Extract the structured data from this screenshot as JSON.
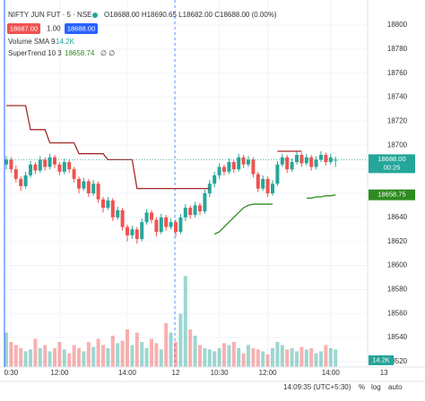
{
  "header": {
    "symbol": "NIFTY JUN FUT · 5 · NSE",
    "ohlc": "O18688.00 H18690.65 L18682.00 C18688.00 (0.00%)",
    "bid": "18687.00",
    "spread": "1.00",
    "ask": "18688.00",
    "volume_label": "Volume SMA 9",
    "volume_sma": "14.2K",
    "supertrend_label": "SuperTrend 10 3",
    "supertrend_value": "18658.74",
    "supertrend_rest": "∅ ∅"
  },
  "chart_data": {
    "type": "candlestick",
    "categories": [
      null,
      "0:30",
      null,
      null,
      null,
      null,
      null,
      null,
      null,
      null,
      null,
      "12:00",
      null,
      null,
      null,
      null,
      null,
      null,
      null,
      null,
      null,
      null,
      null,
      null,
      null,
      "14:00",
      null,
      null,
      null,
      null,
      null,
      null,
      null,
      null,
      null,
      "12",
      null,
      null,
      null,
      null,
      null,
      null,
      null,
      null,
      "10:30",
      null,
      null,
      null,
      null,
      null,
      null,
      null,
      null,
      null,
      "12:00",
      null,
      null,
      null,
      null,
      null,
      null,
      null,
      null,
      null,
      null,
      null,
      null,
      "14:00",
      null,
      null,
      null,
      null,
      null,
      null,
      null,
      null,
      null,
      null,
      "13"
    ],
    "ohlc": [
      [
        18684,
        18691,
        18680,
        18688
      ],
      [
        18688,
        18690,
        18677,
        18680
      ],
      [
        18680,
        18683,
        18669,
        18672
      ],
      [
        18672,
        18674,
        18662,
        18666
      ],
      [
        18666,
        18678,
        18664,
        18675
      ],
      [
        18675,
        18687,
        18673,
        18684
      ],
      [
        18684,
        18686,
        18676,
        18679
      ],
      [
        18679,
        18691,
        18677,
        18688
      ],
      [
        18688,
        18690,
        18679,
        18682
      ],
      [
        18682,
        18693,
        18680,
        18690
      ],
      [
        18690,
        18692,
        18681,
        18684
      ],
      [
        18684,
        18686,
        18675,
        18678
      ],
      [
        18678,
        18689,
        18676,
        18686
      ],
      [
        18686,
        18688,
        18677,
        18680
      ],
      [
        18680,
        18682,
        18669,
        18672
      ],
      [
        18672,
        18674,
        18660,
        18664
      ],
      [
        18664,
        18673,
        18662,
        18670
      ],
      [
        18670,
        18672,
        18657,
        18660
      ],
      [
        18660,
        18671,
        18658,
        18668
      ],
      [
        18668,
        18670,
        18652,
        18655
      ],
      [
        18655,
        18657,
        18644,
        18648
      ],
      [
        18648,
        18657,
        18646,
        18654
      ],
      [
        18654,
        18656,
        18637,
        18640
      ],
      [
        18640,
        18649,
        18638,
        18646
      ],
      [
        18646,
        18648,
        18629,
        18632
      ],
      [
        18632,
        18634,
        18620,
        18625
      ],
      [
        18625,
        18633,
        18622,
        18630
      ],
      [
        18630,
        18632,
        18618,
        18622
      ],
      [
        18622,
        18639,
        18620,
        18636
      ],
      [
        18636,
        18647,
        18634,
        18644
      ],
      [
        18644,
        18646,
        18635,
        18638
      ],
      [
        18638,
        18640,
        18624,
        18628
      ],
      [
        18628,
        18643,
        18626,
        18640
      ],
      [
        18640,
        18642,
        18629,
        18632
      ],
      [
        18632,
        18639,
        18630,
        18636
      ],
      [
        18636,
        18638,
        18624,
        18628
      ],
      [
        18628,
        18643,
        18626,
        18640
      ],
      [
        18640,
        18651,
        18637,
        18648
      ],
      [
        18648,
        18650,
        18639,
        18642
      ],
      [
        18642,
        18653,
        18640,
        18650
      ],
      [
        18650,
        18652,
        18642,
        18645
      ],
      [
        18645,
        18663,
        18643,
        18660
      ],
      [
        18660,
        18671,
        18657,
        18668
      ],
      [
        18668,
        18678,
        18665,
        18675
      ],
      [
        18675,
        18685,
        18672,
        18682
      ],
      [
        18682,
        18684,
        18675,
        18678
      ],
      [
        18678,
        18689,
        18676,
        18686
      ],
      [
        18686,
        18688,
        18677,
        18680
      ],
      [
        18680,
        18693,
        18678,
        18690
      ],
      [
        18690,
        18692,
        18681,
        18684
      ],
      [
        18684,
        18691,
        18682,
        18688
      ],
      [
        18688,
        18690,
        18673,
        18676
      ],
      [
        18676,
        18678,
        18661,
        18664
      ],
      [
        18664,
        18675,
        18662,
        18672
      ],
      [
        18672,
        18674,
        18657,
        18660
      ],
      [
        18660,
        18671,
        18658,
        18668
      ],
      [
        18668,
        18687,
        18666,
        18684
      ],
      [
        18684,
        18693,
        18682,
        18690
      ],
      [
        18690,
        18692,
        18677,
        18680
      ],
      [
        18680,
        18689,
        18678,
        18686
      ],
      [
        18686,
        18695,
        18684,
        18692
      ],
      [
        18692,
        18694,
        18682,
        18685
      ],
      [
        18685,
        18693,
        18683,
        18690
      ],
      [
        18690,
        18692,
        18679,
        18682
      ],
      [
        18682,
        18691,
        18680,
        18688
      ],
      [
        18688,
        18695,
        18686,
        18692
      ],
      [
        18692,
        18694,
        18683,
        18686
      ],
      [
        18686,
        18693,
        18684,
        18690
      ],
      [
        18688,
        18690.65,
        18682,
        18688
      ],
      null,
      null,
      null,
      null,
      null,
      null,
      null,
      null,
      null,
      null
    ],
    "volume": [
      55,
      40,
      35,
      30,
      25,
      28,
      45,
      30,
      35,
      25,
      30,
      40,
      28,
      22,
      35,
      30,
      25,
      40,
      32,
      45,
      35,
      30,
      50,
      38,
      42,
      60,
      35,
      55,
      40,
      30,
      45,
      38,
      28,
      70,
      55,
      40,
      85,
      145,
      60,
      50,
      35,
      30,
      28,
      25,
      30,
      38,
      35,
      40,
      30,
      22,
      35,
      30,
      28,
      25,
      20,
      30,
      40,
      35,
      28,
      30,
      25,
      32,
      28,
      30,
      22,
      25,
      35,
      30,
      28,
      null,
      null,
      null,
      null,
      null,
      null,
      null,
      null,
      null,
      null
    ],
    "series": [
      {
        "color": "#a52a2a",
        "values": [
          18733,
          18733,
          18733,
          18733,
          18733,
          18713,
          18713,
          18713,
          18713,
          18702,
          18702,
          18702,
          18702,
          18702,
          18702,
          18693,
          18693,
          18693,
          18693,
          18693,
          18693,
          18688,
          18688,
          18688,
          18688,
          18688,
          18688,
          18664,
          18664,
          18664,
          18664,
          18664,
          18664,
          18664,
          18664,
          18664,
          18664,
          18664,
          18664,
          18664,
          18664,
          18664,
          18664,
          null,
          null,
          null,
          null,
          null,
          null,
          null,
          null,
          null,
          null,
          null,
          null,
          null,
          18695,
          18695,
          18695,
          18695,
          18695,
          18695,
          null,
          null,
          null,
          null,
          null,
          null,
          null,
          null,
          null,
          null,
          null,
          null,
          null,
          null,
          null,
          null,
          null
        ]
      },
      {
        "color": "#2e8b20",
        "values": [
          null,
          null,
          null,
          null,
          null,
          null,
          null,
          null,
          null,
          null,
          null,
          null,
          null,
          null,
          null,
          null,
          null,
          null,
          null,
          null,
          null,
          null,
          null,
          null,
          null,
          null,
          null,
          null,
          null,
          null,
          null,
          null,
          null,
          null,
          null,
          null,
          null,
          null,
          null,
          null,
          null,
          null,
          null,
          18626,
          18628,
          18632,
          18636,
          18640,
          18644,
          18648,
          18650,
          18651,
          18651,
          18651,
          18651,
          18651,
          null,
          null,
          null,
          null,
          null,
          null,
          18656,
          18656,
          18657,
          18657,
          18658,
          18658,
          18658.74,
          null,
          null,
          null,
          null,
          null,
          null,
          null,
          null,
          null,
          null
        ]
      }
    ],
    "up_color": "#26a69a",
    "down_color": "#ef5350",
    "ylim": [
      18515.5,
      18809.7
    ],
    "yticks": [
      18520,
      18540,
      18560,
      18580,
      18600,
      18620,
      18640,
      18660,
      18680,
      18700,
      18720,
      18740,
      18760,
      18780,
      18800
    ],
    "vlim": [
      0,
      150
    ],
    "grid": true,
    "last_price_tag": "18688.00",
    "countdown": "00:25",
    "supertrend_tag": "18658.75"
  },
  "status_bar": {
    "time": "14:09:35 (UTC+5:30)",
    "percent": "%",
    "log": "log",
    "auto": "auto"
  }
}
